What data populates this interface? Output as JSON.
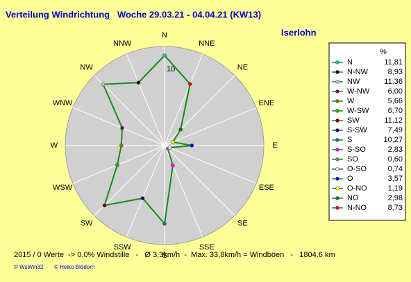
{
  "chart_data": {
    "type": "radar",
    "title": "Verteilung Windrichtung   Woche 29.03.21 - 04.04.21 (KW13)",
    "subtitle": "Iserlohn",
    "directions": [
      "N",
      "NNE",
      "NE",
      "ENE",
      "E",
      "ESE",
      "SE",
      "SSE",
      "S",
      "SSW",
      "SW",
      "WSW",
      "W",
      "WNW",
      "NW",
      "NNW"
    ],
    "legend_title": "%",
    "categories": [
      "N",
      "N-NW",
      "NW",
      "W-NW",
      "W",
      "W-SW",
      "SW",
      "S-SW",
      "S",
      "S-SO",
      "SO",
      "O-SO",
      "O",
      "O-NO",
      "NO",
      "N-NO"
    ],
    "values": [
      11.81,
      8.93,
      11.36,
      6.0,
      5.66,
      6.7,
      11.12,
      7.49,
      10.27,
      2.83,
      0.6,
      0.74,
      3.57,
      1.19,
      2.98,
      8.73
    ],
    "value_labels": [
      "11,81",
      "8,93",
      "11,36",
      "6,00",
      "5,66",
      "6,70",
      "11,12",
      "7,49",
      "10,27",
      "2,83",
      "0,60",
      "0,74",
      "3,57",
      "1,19",
      "2,98",
      "8,73"
    ],
    "marker_colors": [
      "#00c8c8",
      "#000000",
      "#c0c0c0",
      "#800080",
      "#808000",
      "#00c000",
      "#800000",
      "#000080",
      "#008080",
      "#ff00ff",
      "#808080",
      "#e0e0e0",
      "#0000ff",
      "#ffff00",
      "#008000",
      "#ff0000"
    ],
    "line_color": "#1a8a1a",
    "rlim": [
      0,
      13
    ],
    "rticks": [
      10
    ],
    "footer": "2015 / 0 Werte  -> 0.0% Windstille   -   Ø 3,3km/h  -  Max. 33,8km/h = Windböen   -   1804.6 km",
    "credits": [
      "© WsWin32",
      "© Heiko Blödorn"
    ]
  }
}
